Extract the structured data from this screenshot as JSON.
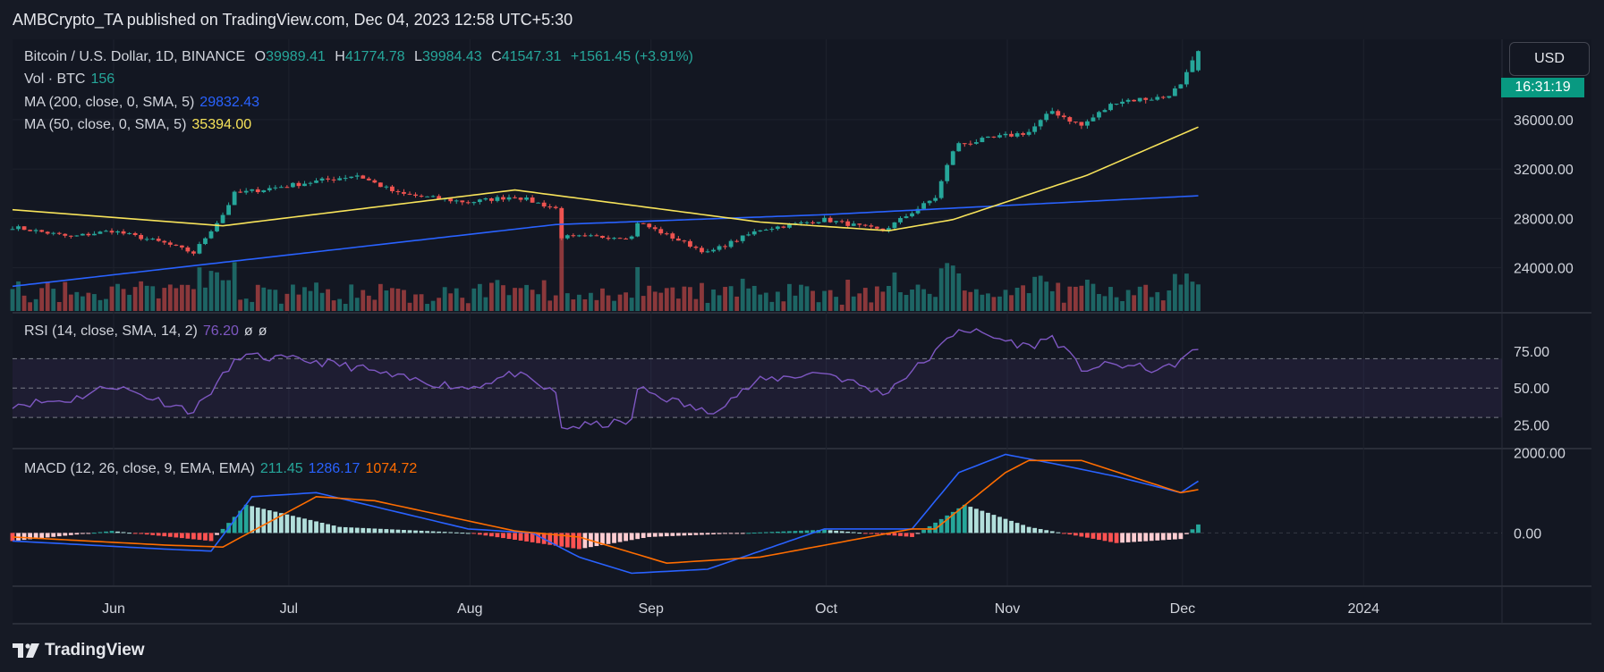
{
  "header": {
    "publish_text": "AMBCrypto_TA published on TradingView.com, Dec 04, 2023 12:58 UTC+5:30"
  },
  "legend": {
    "symbol": "Bitcoin / U.S. Dollar, 1D, BINANCE",
    "o_label": "O",
    "o_value": "39989.41",
    "h_label": "H",
    "h_value": "41774.78",
    "l_label": "L",
    "l_value": "39984.43",
    "c_label": "C",
    "c_value": "41547.31",
    "change": "+1561.45 (+3.91%)",
    "vol_label": "Vol · BTC",
    "vol_value": "156",
    "ma200_label": "MA (200, close, 0, SMA, 5)",
    "ma200_value": "29832.43",
    "ma50_label": "MA (50, close, 0, SMA, 5)",
    "ma50_value": "35394.00",
    "rsi_label": "RSI (14, close, SMA, 14, 2)",
    "rsi_value": "76.20",
    "rsi_extra1": "ø",
    "rsi_extra2": "ø",
    "macd_label": "MACD (12, 26, close, 9, EMA, EMA)",
    "macd_hist": "211.45",
    "macd_line": "1286.17",
    "macd_signal": "1074.72"
  },
  "price_axis": {
    "currency_button": "USD",
    "countdown": "16:31:19",
    "price_ticks": [
      "36000.00",
      "32000.00",
      "28000.00",
      "24000.00"
    ],
    "rsi_ticks": [
      "75.00",
      "50.00",
      "25.00"
    ],
    "macd_ticks": [
      "2000.00",
      "0.00"
    ]
  },
  "time_axis": {
    "labels": [
      "Jun",
      "Jul",
      "Aug",
      "Sep",
      "Oct",
      "Nov",
      "Dec",
      "2024"
    ]
  },
  "footer": {
    "brand": "TradingView"
  },
  "colors": {
    "bg": "#161a25",
    "up": "#26a69a",
    "down": "#ef5350",
    "ma50": "#f7e35a",
    "ma200": "#2962ff",
    "rsi": "#7e57c2",
    "macd": "#2962ff",
    "signal": "#ff6d00",
    "badge": "#089981"
  },
  "chart_data": [
    {
      "type": "candlestick",
      "title": "Bitcoin / U.S. Dollar, 1D, BINANCE",
      "x_range": [
        "2023-05-15",
        "2024-01-25"
      ],
      "x_ticks": [
        "Jun",
        "Jul",
        "Aug",
        "Sep",
        "Oct",
        "Nov",
        "Dec",
        "2024"
      ],
      "ylim": [
        20500,
        42500
      ],
      "y_ticks": [
        24000,
        28000,
        32000,
        36000
      ],
      "close_anchors": [
        [
          "2023-05-15",
          27300
        ],
        [
          "2023-05-25",
          26500
        ],
        [
          "2023-06-01",
          27000
        ],
        [
          "2023-06-10",
          26000
        ],
        [
          "2023-06-15",
          25200
        ],
        [
          "2023-06-20",
          28300
        ],
        [
          "2023-06-22",
          30000
        ],
        [
          "2023-07-06",
          31000
        ],
        [
          "2023-07-13",
          31500
        ],
        [
          "2023-07-20",
          30000
        ],
        [
          "2023-08-01",
          29300
        ],
        [
          "2023-08-09",
          29800
        ],
        [
          "2023-08-16",
          28800
        ],
        [
          "2023-08-17",
          26500
        ],
        [
          "2023-08-29",
          26500
        ],
        [
          "2023-08-30",
          27700
        ],
        [
          "2023-09-11",
          25200
        ],
        [
          "2023-09-20",
          27100
        ],
        [
          "2023-10-01",
          27900
        ],
        [
          "2023-10-11",
          27000
        ],
        [
          "2023-10-16",
          28500
        ],
        [
          "2023-10-20",
          29700
        ],
        [
          "2023-10-23",
          33500
        ],
        [
          "2023-10-24",
          34000
        ],
        [
          "2023-11-05",
          35000
        ],
        [
          "2023-11-09",
          36700
        ],
        [
          "2023-11-14",
          35500
        ],
        [
          "2023-11-20",
          37500
        ],
        [
          "2023-11-28",
          37800
        ],
        [
          "2023-12-01",
          38700
        ],
        [
          "2023-12-04",
          41547
        ]
      ],
      "last_ohlc": {
        "open": 39989.41,
        "high": 41774.78,
        "low": 39984.43,
        "close": 41547.31
      },
      "series": [
        {
          "name": "MA (200, close, 0, SMA, 5)",
          "last": 29832.43,
          "anchors": [
            [
              "2023-05-15",
              22500
            ],
            [
              "2023-08-16",
              27500
            ],
            [
              "2023-10-01",
              28300
            ],
            [
              "2023-12-04",
              29832
            ]
          ]
        },
        {
          "name": "MA (50, close, 0, SMA, 5)",
          "last": 35394.0,
          "anchors": [
            [
              "2023-05-15",
              28700
            ],
            [
              "2023-06-20",
              27400
            ],
            [
              "2023-08-09",
              30300
            ],
            [
              "2023-09-20",
              27700
            ],
            [
              "2023-10-12",
              27000
            ],
            [
              "2023-10-23",
              27900
            ],
            [
              "2023-11-15",
              31500
            ],
            [
              "2023-12-04",
              35394
            ]
          ]
        }
      ],
      "volume_last": 156
    },
    {
      "type": "line",
      "title": "RSI (14, close, SMA, 14, 2)",
      "ylim": [
        10,
        100
      ],
      "y_ticks": [
        25,
        50,
        75
      ],
      "band": [
        30,
        70
      ],
      "last": 76.2,
      "anchors": [
        [
          "2023-05-15",
          39
        ],
        [
          "2023-05-25",
          42
        ],
        [
          "2023-06-01",
          52
        ],
        [
          "2023-06-15",
          34
        ],
        [
          "2023-06-23",
          72
        ],
        [
          "2023-07-06",
          68
        ],
        [
          "2023-07-13",
          64
        ],
        [
          "2023-07-20",
          57
        ],
        [
          "2023-08-01",
          50
        ],
        [
          "2023-08-09",
          60
        ],
        [
          "2023-08-16",
          46
        ],
        [
          "2023-08-17",
          23
        ],
        [
          "2023-08-29",
          27
        ],
        [
          "2023-08-30",
          50
        ],
        [
          "2023-09-11",
          33
        ],
        [
          "2023-09-20",
          55
        ],
        [
          "2023-10-01",
          61
        ],
        [
          "2023-10-11",
          46
        ],
        [
          "2023-10-20",
          74
        ],
        [
          "2023-10-24",
          91
        ],
        [
          "2023-11-05",
          78
        ],
        [
          "2023-11-09",
          85
        ],
        [
          "2023-11-14",
          63
        ],
        [
          "2023-11-20",
          66
        ],
        [
          "2023-11-28",
          62
        ],
        [
          "2023-12-04",
          76.2
        ]
      ]
    },
    {
      "type": "line",
      "title": "MACD (12, 26, close, 9, EMA, EMA)",
      "ylim": [
        -1300,
        2050
      ],
      "y_ticks": [
        0,
        2000
      ],
      "last": {
        "histogram": 211.45,
        "macd": 1286.17,
        "signal": 1074.72
      },
      "series": [
        {
          "name": "MACD",
          "anchors": [
            [
              "2023-05-15",
              -200
            ],
            [
              "2023-06-10",
              -400
            ],
            [
              "2023-06-18",
              -450
            ],
            [
              "2023-06-25",
              900
            ],
            [
              "2023-07-06",
              1000
            ],
            [
              "2023-08-01",
              100
            ],
            [
              "2023-08-12",
              0
            ],
            [
              "2023-08-20",
              -600
            ],
            [
              "2023-08-29",
              -1000
            ],
            [
              "2023-09-11",
              -900
            ],
            [
              "2023-10-01",
              100
            ],
            [
              "2023-10-16",
              100
            ],
            [
              "2023-10-24",
              1500
            ],
            [
              "2023-11-01",
              1950
            ],
            [
              "2023-11-10",
              1700
            ],
            [
              "2023-11-20",
              1400
            ],
            [
              "2023-12-01",
              1000
            ],
            [
              "2023-12-04",
              1286
            ]
          ]
        },
        {
          "name": "Signal",
          "anchors": [
            [
              "2023-05-15",
              -100
            ],
            [
              "2023-06-10",
              -300
            ],
            [
              "2023-06-20",
              -350
            ],
            [
              "2023-07-06",
              900
            ],
            [
              "2023-07-16",
              800
            ],
            [
              "2023-08-09",
              50
            ],
            [
              "2023-08-20",
              -100
            ],
            [
              "2023-09-04",
              -750
            ],
            [
              "2023-09-20",
              -600
            ],
            [
              "2023-10-16",
              100
            ],
            [
              "2023-10-20",
              100
            ],
            [
              "2023-11-01",
              1500
            ],
            [
              "2023-11-05",
              1800
            ],
            [
              "2023-11-14",
              1800
            ],
            [
              "2023-12-01",
              1000
            ],
            [
              "2023-12-04",
              1075
            ]
          ]
        },
        {
          "name": "Histogram",
          "anchors": [
            [
              "2023-05-15",
              -200
            ],
            [
              "2023-06-01",
              50
            ],
            [
              "2023-06-18",
              -200
            ],
            [
              "2023-06-24",
              700
            ],
            [
              "2023-07-10",
              150
            ],
            [
              "2023-08-01",
              0
            ],
            [
              "2023-08-20",
              -400
            ],
            [
              "2023-09-01",
              -100
            ],
            [
              "2023-10-01",
              80
            ],
            [
              "2023-10-16",
              -100
            ],
            [
              "2023-10-25",
              700
            ],
            [
              "2023-11-05",
              150
            ],
            [
              "2023-11-20",
              -250
            ],
            [
              "2023-12-01",
              -150
            ],
            [
              "2023-12-04",
              211
            ]
          ]
        }
      ]
    }
  ]
}
